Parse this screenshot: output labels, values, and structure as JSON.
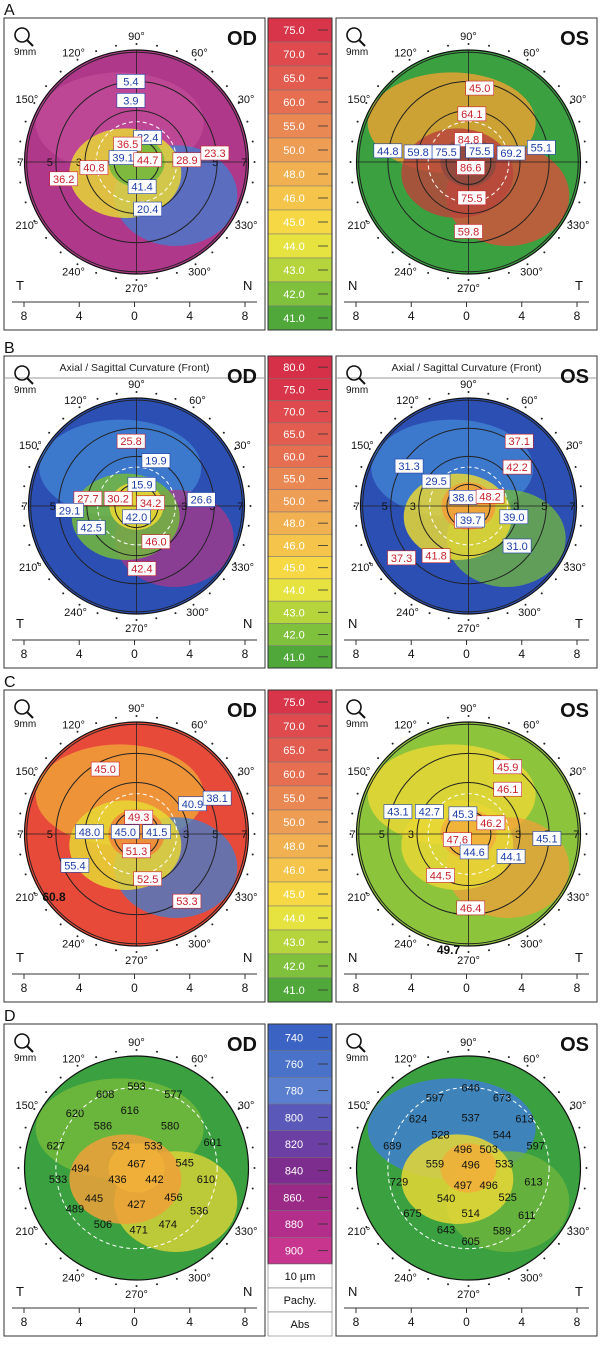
{
  "panels": [
    {
      "letter": "A",
      "left": {
        "eye": "OD",
        "header": "",
        "nasal": "N",
        "temporal": "T",
        "ticks": [
          "8",
          "4",
          "0",
          "4",
          "8"
        ],
        "angles": [
          "90°",
          "120°",
          "60°",
          "150°",
          "30°",
          "210°",
          "330°",
          "240°",
          "300°",
          "270°"
        ],
        "rings": [
          "7",
          "5",
          "3",
          "3",
          "5",
          "7"
        ],
        "zones": [
          "#b0388a",
          "#c14a96",
          "#3f7fd0",
          "#e8d735",
          "#73b83c"
        ],
        "values": [
          {
            "t": "5.4",
            "c": "blue"
          },
          {
            "t": "3.9",
            "c": "blue"
          },
          {
            "t": "22.4",
            "c": "blue"
          },
          {
            "t": "36.5",
            "c": "red"
          },
          {
            "t": "39.1",
            "c": "blue"
          },
          {
            "t": "44.7",
            "c": "red"
          },
          {
            "t": "28.9",
            "c": "red"
          },
          {
            "t": "23.3",
            "c": "red"
          },
          {
            "t": "40.8",
            "c": "red"
          },
          {
            "t": "36.2",
            "c": "red"
          },
          {
            "t": "41.4",
            "c": "blue"
          },
          {
            "t": "20.4",
            "c": "blue"
          }
        ],
        "extras": []
      },
      "right": {
        "eye": "OS",
        "header": "",
        "nasal": "N",
        "temporal": "T",
        "ticks": [
          "8",
          "4",
          "0",
          "4",
          "8"
        ],
        "angles": [
          "90°",
          "120°",
          "60°",
          "150°",
          "30°",
          "210°",
          "330°",
          "240°",
          "300°",
          "270°"
        ],
        "rings": [],
        "zones": [
          "#3aa040",
          "#e8a234",
          "#e24b3a",
          "#b8473c",
          "#8e4a40"
        ],
        "values": [
          {
            "t": "45.0",
            "c": "red"
          },
          {
            "t": "64.1",
            "c": "red"
          },
          {
            "t": "84.8",
            "c": "red"
          },
          {
            "t": "44.8",
            "c": "blue"
          },
          {
            "t": "59.8",
            "c": "blue"
          },
          {
            "t": "75.5",
            "c": "blue"
          },
          {
            "t": "75.5",
            "c": "blue"
          },
          {
            "t": "69.2",
            "c": "blue"
          },
          {
            "t": "55.1",
            "c": "blue"
          },
          {
            "t": "86.6",
            "c": "red"
          },
          {
            "t": "75.5",
            "c": "red"
          },
          {
            "t": "59.8",
            "c": "red"
          }
        ],
        "extras": []
      },
      "scale": [
        "75.0",
        "70.0",
        "65.0",
        "60.0",
        "55.0",
        "50.0",
        "48.0",
        "46.0",
        "45.0",
        "44.0",
        "43.0",
        "42.0",
        "41.0"
      ],
      "scale_colors": [
        "#d9354a",
        "#de4a4e",
        "#e25c50",
        "#e66f52",
        "#ea8854",
        "#ee9d55",
        "#f2b150",
        "#f4c54a",
        "#f6d845",
        "#e6e240",
        "#b6d43c",
        "#7fc03c",
        "#4fa839"
      ],
      "footer": []
    },
    {
      "letter": "B",
      "left": {
        "eye": "OD",
        "header": "Axial / Sagittal Curvature (Front)",
        "nasal": "N",
        "temporal": "T",
        "ticks": [
          "8",
          "4",
          "0",
          "4",
          "8"
        ],
        "angles": [
          "90°",
          "120°",
          "60°",
          "150°",
          "30°",
          "210°",
          "330°",
          "240°",
          "300°",
          "270°"
        ],
        "rings": [
          "7",
          "5",
          "3",
          "3",
          "5",
          "7"
        ],
        "zones": [
          "#2c4fb4",
          "#3f7fd0",
          "#a8388a",
          "#73b83c",
          "#e8d735"
        ],
        "values": [
          {
            "t": "25.8",
            "c": "red"
          },
          {
            "t": "19.9",
            "c": "blue"
          },
          {
            "t": "15.9",
            "c": "blue"
          },
          {
            "t": "27.7",
            "c": "red"
          },
          {
            "t": "30.2",
            "c": "red"
          },
          {
            "t": "34.2",
            "c": "red"
          },
          {
            "t": "26.6",
            "c": "blue"
          },
          {
            "t": "29.1",
            "c": "blue"
          },
          {
            "t": "42.0",
            "c": "blue"
          },
          {
            "t": "42.5",
            "c": "blue"
          },
          {
            "t": "46.0",
            "c": "red"
          },
          {
            "t": "42.4",
            "c": "red"
          }
        ],
        "extras": []
      },
      "right": {
        "eye": "OS",
        "header": "Axial / Sagittal Curvature (Front)",
        "nasal": "N",
        "temporal": "T",
        "ticks": [
          "8",
          "4",
          "0",
          "4",
          "8"
        ],
        "angles": [
          "90°",
          "120°",
          "60°",
          "150°",
          "30°",
          "210°",
          "330°",
          "240°",
          "300°",
          "270°"
        ],
        "rings": [
          "7",
          "5",
          "3",
          "3",
          "5",
          "7"
        ],
        "zones": [
          "#2c4fb4",
          "#3f7fd0",
          "#73b83c",
          "#e8d735",
          "#f0a03a"
        ],
        "values": [
          {
            "t": "37.1",
            "c": "red"
          },
          {
            "t": "31.3",
            "c": "blue"
          },
          {
            "t": "29.5",
            "c": "blue"
          },
          {
            "t": "42.2",
            "c": "red"
          },
          {
            "t": "38.6",
            "c": "blue"
          },
          {
            "t": "48.2",
            "c": "red"
          },
          {
            "t": "49.2",
            "c": "red"
          },
          {
            "t": "39.7",
            "c": "blue"
          },
          {
            "t": "39.0",
            "c": "blue"
          },
          {
            "t": "37.3",
            "c": "red"
          },
          {
            "t": "41.8",
            "c": "red"
          },
          {
            "t": "31.0",
            "c": "blue"
          }
        ],
        "extras": []
      },
      "scale": [
        "80.0",
        "75.0",
        "70.0",
        "65.0",
        "60.0",
        "55.0",
        "50.0",
        "48.0",
        "46.0",
        "45.0",
        "44.0",
        "43.0",
        "42.0",
        "41.0"
      ],
      "scale_colors": [
        "#d63048",
        "#d9354a",
        "#de4a4e",
        "#e25c50",
        "#e66f52",
        "#ea8854",
        "#ee9d55",
        "#f2b150",
        "#f4c54a",
        "#f6d845",
        "#e6e240",
        "#b6d43c",
        "#7fc03c",
        "#4fa839"
      ],
      "footer": []
    },
    {
      "letter": "C",
      "left": {
        "eye": "OD",
        "header": "",
        "nasal": "N",
        "temporal": "T",
        "ticks": [
          "8",
          "4",
          "0",
          "4",
          "8"
        ],
        "angles": [
          "90°",
          "120°",
          "60°",
          "150°",
          "30°",
          "210°",
          "330°",
          "240°",
          "300°",
          "270°"
        ],
        "rings": [
          "7",
          "5",
          "3",
          "3",
          "5",
          "7"
        ],
        "zones": [
          "#e84a3a",
          "#f0a03a",
          "#3f7fd0",
          "#e8d735",
          "#f08a3a"
        ],
        "values": [
          {
            "t": "45.0",
            "c": "red"
          },
          {
            "t": "40.9",
            "c": "blue"
          },
          {
            "t": "38.1",
            "c": "blue"
          },
          {
            "t": "49.3",
            "c": "red"
          },
          {
            "t": "48.0",
            "c": "blue"
          },
          {
            "t": "45.0",
            "c": "blue"
          },
          {
            "t": "41.5",
            "c": "blue"
          },
          {
            "t": "51.3",
            "c": "red"
          },
          {
            "t": "55.4",
            "c": "blue"
          },
          {
            "t": "52.5",
            "c": "red"
          },
          {
            "t": "53.3",
            "c": "red"
          }
        ],
        "extras": [
          "60.8"
        ]
      },
      "right": {
        "eye": "OS",
        "header": "",
        "nasal": "N",
        "temporal": "T",
        "ticks": [
          "8",
          "4",
          "0",
          "4",
          "8"
        ],
        "angles": [
          "90°",
          "120°",
          "60°",
          "150°",
          "30°",
          "210°",
          "330°",
          "240°",
          "300°",
          "270°"
        ],
        "rings": [
          "7",
          "5",
          "3",
          "3",
          "5",
          "7"
        ],
        "zones": [
          "#8cc43c",
          "#e8d735",
          "#f0a03a",
          "#e8d735",
          "#f0b03a"
        ],
        "values": [
          {
            "t": "45.9",
            "c": "red"
          },
          {
            "t": "43.1",
            "c": "blue"
          },
          {
            "t": "42.7",
            "c": "blue"
          },
          {
            "t": "45.3",
            "c": "blue"
          },
          {
            "t": "46.1",
            "c": "red"
          },
          {
            "t": "46.2",
            "c": "red"
          },
          {
            "t": "47.6",
            "c": "red"
          },
          {
            "t": "44.6",
            "c": "blue"
          },
          {
            "t": "45.1",
            "c": "blue"
          },
          {
            "t": "44.1",
            "c": "blue"
          },
          {
            "t": "44.5",
            "c": "red"
          },
          {
            "t": "46.4",
            "c": "red"
          }
        ],
        "extras": [
          "49.7"
        ]
      },
      "scale": [
        "75.0",
        "70.0",
        "65.0",
        "60.0",
        "55.0",
        "50.0",
        "48.0",
        "46.0",
        "45.0",
        "44.0",
        "43.0",
        "42.0",
        "41.0"
      ],
      "scale_colors": [
        "#d9354a",
        "#de4a4e",
        "#e25c50",
        "#e66f52",
        "#ea8854",
        "#ee9d55",
        "#f2b150",
        "#f4c54a",
        "#f6d845",
        "#e6e240",
        "#b6d43c",
        "#7fc03c",
        "#4fa839"
      ],
      "footer": []
    },
    {
      "letter": "D",
      "left": {
        "eye": "OD",
        "header": "",
        "nasal": "N",
        "temporal": "T",
        "ticks": [
          "8",
          "4",
          "0",
          "4",
          "8"
        ],
        "angles": [
          "90°",
          "120°",
          "60°",
          "150°",
          "30°",
          "210°",
          "330°",
          "240°",
          "300°",
          "270°"
        ],
        "rings": [],
        "zones": [
          "#3aa040",
          "#73b83c",
          "#e8d735",
          "#f0a03a",
          "#f0b03a"
        ],
        "values": [
          {
            "t": "593",
            "c": "black"
          },
          {
            "t": "608",
            "c": "black"
          },
          {
            "t": "577",
            "c": "black"
          },
          {
            "t": "620",
            "c": "black"
          },
          {
            "t": "616",
            "c": "black"
          },
          {
            "t": "586",
            "c": "black"
          },
          {
            "t": "580",
            "c": "black"
          },
          {
            "t": "627",
            "c": "black"
          },
          {
            "t": "601",
            "c": "black"
          },
          {
            "t": "524",
            "c": "black"
          },
          {
            "t": "533",
            "c": "black"
          },
          {
            "t": "494",
            "c": "black"
          },
          {
            "t": "467",
            "c": "black"
          },
          {
            "t": "545",
            "c": "black"
          },
          {
            "t": "533",
            "c": "black"
          },
          {
            "t": "436",
            "c": "black"
          },
          {
            "t": "442",
            "c": "black"
          },
          {
            "t": "610",
            "c": "black"
          },
          {
            "t": "445",
            "c": "black"
          },
          {
            "t": "456",
            "c": "black"
          },
          {
            "t": "489",
            "c": "black"
          },
          {
            "t": "427",
            "c": "black"
          },
          {
            "t": "536",
            "c": "black"
          },
          {
            "t": "506",
            "c": "black"
          },
          {
            "t": "471",
            "c": "black"
          },
          {
            "t": "474",
            "c": "black"
          }
        ],
        "extras": []
      },
      "right": {
        "eye": "OS",
        "header": "",
        "nasal": "N",
        "temporal": "T",
        "ticks": [
          "8",
          "4",
          "0",
          "4",
          "8"
        ],
        "angles": [
          "90°",
          "120°",
          "60°",
          "150°",
          "30°",
          "210°",
          "330°",
          "240°",
          "300°",
          "270°"
        ],
        "rings": [],
        "zones": [
          "#3aa040",
          "#3f7fd0",
          "#73b83c",
          "#e8d735",
          "#f0b03a"
        ],
        "values": [
          {
            "t": "646",
            "c": "black"
          },
          {
            "t": "597",
            "c": "black"
          },
          {
            "t": "673",
            "c": "black"
          },
          {
            "t": "537",
            "c": "black"
          },
          {
            "t": "624",
            "c": "black"
          },
          {
            "t": "613",
            "c": "black"
          },
          {
            "t": "528",
            "c": "black"
          },
          {
            "t": "544",
            "c": "black"
          },
          {
            "t": "689",
            "c": "black"
          },
          {
            "t": "496",
            "c": "black"
          },
          {
            "t": "503",
            "c": "black"
          },
          {
            "t": "597",
            "c": "black"
          },
          {
            "t": "496",
            "c": "black"
          },
          {
            "t": "559",
            "c": "black"
          },
          {
            "t": "533",
            "c": "black"
          },
          {
            "t": "729",
            "c": "black"
          },
          {
            "t": "613",
            "c": "black"
          },
          {
            "t": "497",
            "c": "black"
          },
          {
            "t": "496",
            "c": "black"
          },
          {
            "t": "540",
            "c": "black"
          },
          {
            "t": "525",
            "c": "black"
          },
          {
            "t": "675",
            "c": "black"
          },
          {
            "t": "514",
            "c": "black"
          },
          {
            "t": "611",
            "c": "black"
          },
          {
            "t": "643",
            "c": "black"
          },
          {
            "t": "605",
            "c": "black"
          },
          {
            "t": "589",
            "c": "black"
          }
        ],
        "extras": []
      },
      "scale": [
        "740",
        "760",
        "780",
        "800",
        "820",
        "840",
        "860.",
        "880",
        "900"
      ],
      "scale_colors": [
        "#3b63c4",
        "#4a72c9",
        "#5a7fcf",
        "#5a58b8",
        "#6b3fa4",
        "#7d2d8e",
        "#9a2a86",
        "#b32d8a",
        "#c8358f"
      ],
      "footer": [
        "10 µm",
        "Pachy.",
        "Abs"
      ]
    }
  ],
  "map_scale_label": "9mm",
  "colors": {
    "valRed": "#c8202b",
    "valBlue": "#1c3ea8",
    "frame": "#333333"
  }
}
